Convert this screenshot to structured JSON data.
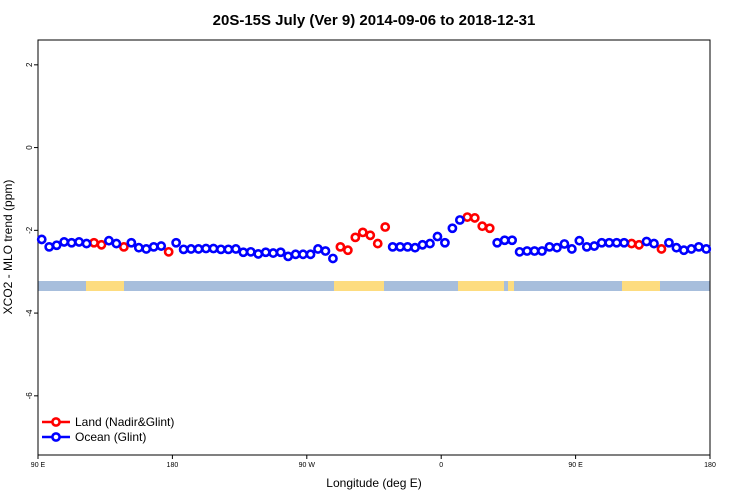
{
  "chart_data": {
    "type": "scatter",
    "title": "20S-15S July (Ver 9)   2014-09-06 to 2018-12-31",
    "x_label": "Longitude (deg E)",
    "y_label": "XCO2 - MLO trend (ppm)",
    "xlim": [
      90,
      540
    ],
    "ylim": [
      -7.43,
      2.6
    ],
    "xticks": [
      {
        "value": 90,
        "label": "90 E"
      },
      180,
      {
        "value": 270,
        "label": "90 W"
      },
      {
        "value": 360,
        "label": "0"
      },
      {
        "value": 450,
        "label": "90 E"
      },
      {
        "value": 540,
        "label": "180"
      }
    ],
    "yticks": [
      2,
      0,
      -2,
      -4,
      -6
    ],
    "legend": "bottomleft",
    "x": [
      92.5,
      97.5,
      102.5,
      107.5,
      112.5,
      117.5,
      122.5,
      127.5,
      132.5,
      137.5,
      142.5,
      147.5,
      152.5,
      157.5,
      162.5,
      167.5,
      172.5,
      177.5,
      182.5,
      187.5,
      192.5,
      197.5,
      202.5,
      207.5,
      212.5,
      217.5,
      222.5,
      227.5,
      232.5,
      237.5,
      242.5,
      247.5,
      252.5,
      257.5,
      262.5,
      267.5,
      272.5,
      277.5,
      282.5,
      287.5,
      292.5,
      297.5,
      302.5,
      307.5,
      312.5,
      317.5,
      322.5,
      327.5,
      332.5,
      337.5,
      342.5,
      347.5,
      352.5,
      357.5,
      362.5,
      367.5,
      372.5,
      377.5,
      382.5,
      387.5,
      392.5,
      397.5,
      402.5,
      407.5,
      412.5,
      417.5,
      422.5,
      427.5,
      432.5,
      437.5,
      442.5,
      447.5,
      452.5,
      457.5,
      462.5,
      467.5,
      472.5,
      477.5,
      482.5,
      487.5,
      492.5,
      497.5,
      502.5,
      507.5,
      512.5,
      517.5,
      522.5,
      527.5,
      532.5,
      537.5
    ],
    "series": [
      {
        "name": "Land (Nadir&Glint)",
        "color": "#ff0000",
        "values": [
          null,
          null,
          null,
          null,
          null,
          null,
          null,
          -2.3,
          -2.35,
          null,
          null,
          -2.4,
          null,
          null,
          null,
          null,
          null,
          -2.52,
          null,
          null,
          null,
          null,
          null,
          null,
          null,
          null,
          null,
          null,
          null,
          null,
          null,
          null,
          null,
          null,
          null,
          null,
          null,
          null,
          null,
          null,
          -2.4,
          -2.48,
          -2.17,
          -2.05,
          -2.12,
          -2.32,
          -1.92,
          null,
          null,
          null,
          null,
          null,
          null,
          null,
          null,
          null,
          null,
          -1.68,
          -1.7,
          -1.9,
          -1.95,
          null,
          null,
          null,
          null,
          null,
          null,
          null,
          null,
          null,
          null,
          null,
          null,
          null,
          null,
          null,
          null,
          null,
          null,
          -2.32,
          -2.35,
          null,
          null,
          -2.45,
          null,
          null,
          null,
          null,
          null,
          null
        ]
      },
      {
        "name": "Ocean (Glint)",
        "color": "#0000ff",
        "values": [
          -2.22,
          -2.4,
          -2.36,
          -2.28,
          -2.3,
          -2.28,
          -2.32,
          null,
          null,
          -2.25,
          -2.32,
          null,
          -2.3,
          -2.42,
          -2.45,
          -2.4,
          -2.38,
          null,
          -2.3,
          -2.46,
          -2.45,
          -2.45,
          -2.44,
          -2.44,
          -2.46,
          -2.46,
          -2.45,
          -2.53,
          -2.52,
          -2.57,
          -2.53,
          -2.55,
          -2.53,
          -2.63,
          -2.58,
          -2.58,
          -2.58,
          -2.45,
          -2.5,
          -2.68,
          null,
          null,
          null,
          null,
          null,
          null,
          null,
          -2.4,
          -2.4,
          -2.4,
          -2.42,
          -2.35,
          -2.32,
          -2.15,
          -2.3,
          -1.95,
          -1.75,
          null,
          null,
          null,
          null,
          -2.3,
          -2.24,
          -2.24,
          -2.52,
          -2.5,
          -2.5,
          -2.5,
          -2.4,
          -2.42,
          -2.33,
          -2.45,
          -2.25,
          -2.4,
          -2.38,
          -2.3,
          -2.3,
          -2.3,
          -2.3,
          null,
          null,
          -2.27,
          -2.32,
          null,
          -2.3,
          -2.42,
          -2.48,
          -2.45,
          -2.4,
          -2.45
        ]
      }
    ]
  }
}
